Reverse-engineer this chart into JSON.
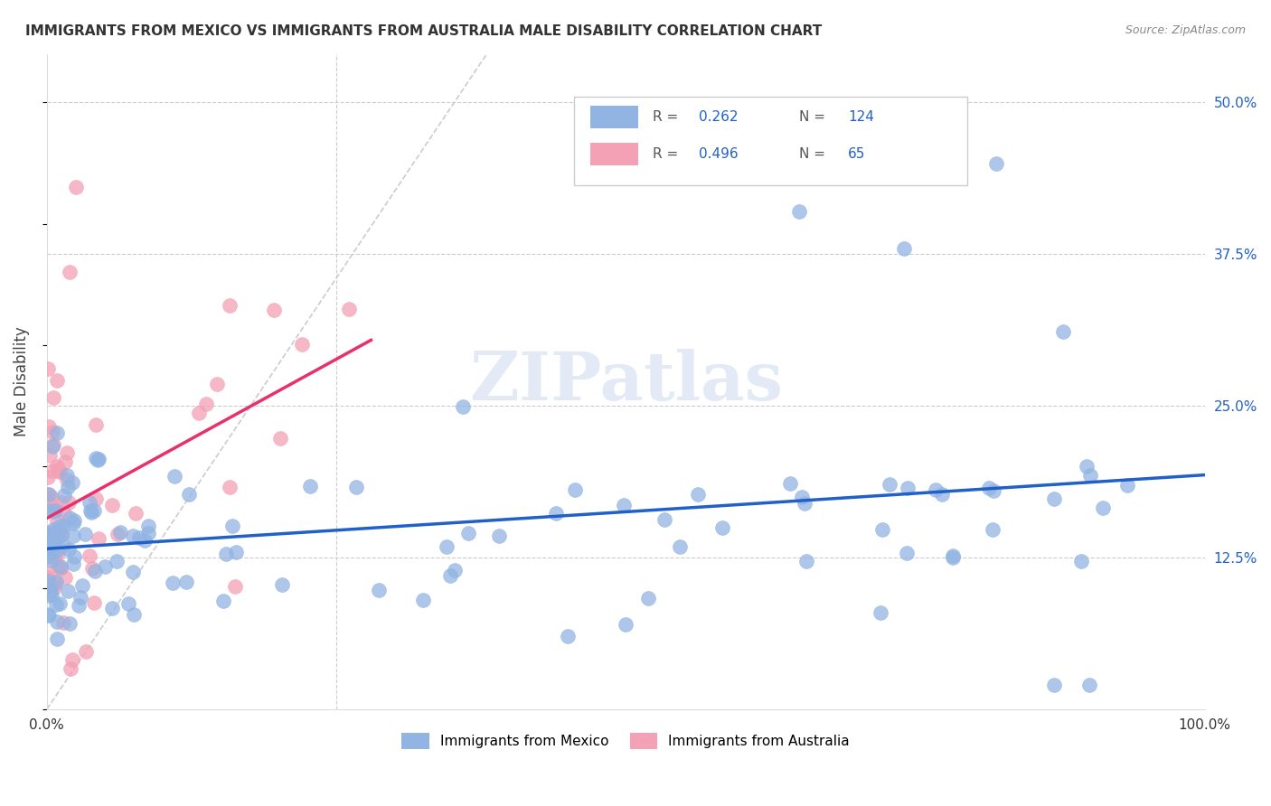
{
  "title": "IMMIGRANTS FROM MEXICO VS IMMIGRANTS FROM AUSTRALIA MALE DISABILITY CORRELATION CHART",
  "source": "Source: ZipAtlas.com",
  "ylabel_left": "Male Disability",
  "legend_entry1": "Immigrants from Mexico",
  "legend_entry2": "Immigrants from Australia",
  "R_mexico": 0.262,
  "N_mexico": 124,
  "R_australia": 0.496,
  "N_australia": 65,
  "color_mexico": "#92b4e3",
  "color_australia": "#f4a0b5",
  "trendline_mexico": "#2060c8",
  "trendline_australia": "#e8306a",
  "xmin": 0.0,
  "xmax": 1.0,
  "ymin": 0.0,
  "ymax": 0.54,
  "ytick_labels": [
    "12.5%",
    "25.0%",
    "37.5%",
    "50.0%"
  ],
  "ytick_values": [
    0.125,
    0.25,
    0.375,
    0.5
  ],
  "xtick_labels": [
    "0.0%",
    "100.0%"
  ],
  "xtick_values": [
    0.0,
    1.0
  ],
  "watermark": "ZIPatlas"
}
